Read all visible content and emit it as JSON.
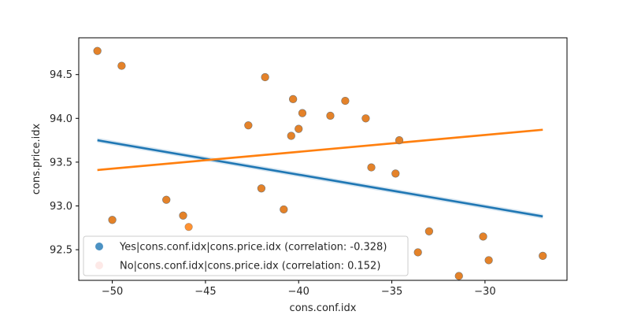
{
  "chart_data": {
    "type": "scatter",
    "xlabel": "cons.conf.idx",
    "ylabel": "cons.price.idx",
    "xlim": [
      -51.8,
      -25.6
    ],
    "ylim": [
      92.15,
      94.92
    ],
    "xticks": [
      -50,
      -45,
      -40,
      -35,
      -30
    ],
    "xtick_labels": [
      "−50",
      "−45",
      "−40",
      "−35",
      "−30"
    ],
    "yticks": [
      92.5,
      93.0,
      93.5,
      94.0,
      94.5
    ],
    "ytick_labels": [
      "92.5",
      "93.0",
      "93.5",
      "94.0",
      "94.5"
    ],
    "grid": false,
    "legend_position": "lower-left",
    "series": [
      {
        "name": "Yes|cons.conf.idx|cons.price.idx (correlation: -0.328)",
        "color": "#1f77b4",
        "points": [
          [
            -50.8,
            94.77
          ],
          [
            -49.5,
            94.6
          ],
          [
            -50.0,
            92.84
          ],
          [
            -47.1,
            93.07
          ],
          [
            -46.2,
            92.89
          ],
          [
            -42.7,
            93.92
          ],
          [
            -42.0,
            93.2
          ],
          [
            -41.8,
            94.47
          ],
          [
            -40.8,
            92.96
          ],
          [
            -40.4,
            93.8
          ],
          [
            -40.3,
            94.22
          ],
          [
            -40.0,
            93.88
          ],
          [
            -39.8,
            94.06
          ],
          [
            -38.3,
            94.03
          ],
          [
            -37.5,
            94.2
          ],
          [
            -36.4,
            94.0
          ],
          [
            -36.1,
            93.44
          ],
          [
            -34.8,
            93.37
          ],
          [
            -34.6,
            93.75
          ],
          [
            -33.6,
            92.47
          ],
          [
            -33.0,
            92.71
          ],
          [
            -31.4,
            92.2
          ],
          [
            -30.1,
            92.65
          ],
          [
            -29.8,
            92.38
          ],
          [
            -26.9,
            92.43
          ]
        ],
        "trend": {
          "x": [
            -50.8,
            -26.9
          ],
          "y": [
            93.75,
            92.88
          ]
        }
      },
      {
        "name": "No|cons.conf.idx|cons.price.idx (correlation: 0.152)",
        "color": "#ff7f0e",
        "points": [
          [
            -50.8,
            94.77
          ],
          [
            -49.5,
            94.6
          ],
          [
            -50.0,
            92.84
          ],
          [
            -47.1,
            93.07
          ],
          [
            -46.2,
            92.89
          ],
          [
            -45.9,
            92.76
          ],
          [
            -42.7,
            93.92
          ],
          [
            -42.0,
            93.2
          ],
          [
            -41.8,
            94.47
          ],
          [
            -40.8,
            92.96
          ],
          [
            -40.4,
            93.8
          ],
          [
            -40.3,
            94.22
          ],
          [
            -40.0,
            93.88
          ],
          [
            -39.8,
            94.06
          ],
          [
            -38.3,
            94.03
          ],
          [
            -37.5,
            94.2
          ],
          [
            -36.4,
            94.0
          ],
          [
            -36.1,
            93.44
          ],
          [
            -34.8,
            93.37
          ],
          [
            -34.6,
            93.75
          ],
          [
            -33.6,
            92.47
          ],
          [
            -33.0,
            92.71
          ],
          [
            -31.4,
            92.2
          ],
          [
            -30.1,
            92.65
          ],
          [
            -29.8,
            92.38
          ],
          [
            -26.9,
            92.43
          ]
        ],
        "trend": {
          "x": [
            -50.8,
            -26.9
          ],
          "y": [
            93.41,
            93.87
          ]
        }
      }
    ]
  }
}
